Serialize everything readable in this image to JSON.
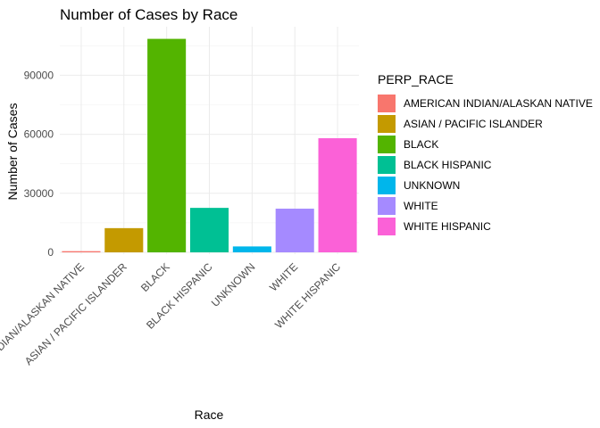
{
  "chart_data": {
    "type": "bar",
    "title": "Number of Cases by Race",
    "xlabel": "Race",
    "ylabel": "Number of Cases",
    "categories": [
      "AMERICAN INDIAN/ALASKAN NATIVE",
      "ASIAN / PACIFIC ISLANDER",
      "BLACK",
      "BLACK HISPANIC",
      "UNKNOWN",
      "WHITE",
      "WHITE HISPANIC"
    ],
    "values": [
      600,
      12300,
      108500,
      22600,
      3000,
      22200,
      58000
    ],
    "colors": [
      "#F8766D",
      "#C49A00",
      "#53B400",
      "#00C094",
      "#00B6EB",
      "#A58AFF",
      "#FB61D7"
    ],
    "ylim": [
      0,
      112000
    ],
    "yticks": [
      0,
      30000,
      60000,
      90000
    ],
    "ytick_labels": [
      "0",
      "30000",
      "60000",
      "90000"
    ],
    "grid": true,
    "legend": {
      "title": "PERP_RACE",
      "placement": "right",
      "entries": [
        "AMERICAN INDIAN/ALASKAN NATIVE",
        "ASIAN / PACIFIC ISLANDER",
        "BLACK",
        "BLACK HISPANIC",
        "UNKNOWN",
        "WHITE",
        "WHITE HISPANIC"
      ]
    }
  }
}
